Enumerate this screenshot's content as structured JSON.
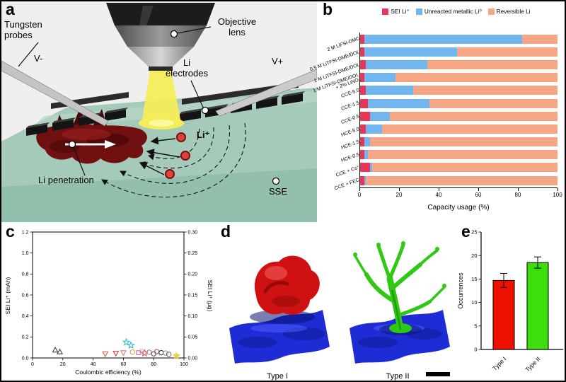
{
  "figure": {
    "panel_labels": {
      "a": "a",
      "b": "b",
      "c": "c",
      "d": "d",
      "e": "e"
    }
  },
  "panel_a": {
    "labels": {
      "tungsten_probes": "Tungsten\nprobes",
      "objective_lens": "Objective\nlens",
      "li_electrodes": "Li\nelectrodes",
      "v_minus": "V-",
      "v_plus": "V+",
      "li_ion": "Li⁺",
      "li_penetration": "Li penetration",
      "sse": "SSE"
    }
  },
  "panel_d": {
    "type_i_label": "Type I",
    "type_ii_label": "Type II"
  },
  "chart_data": [
    {
      "id": "capacity_usage",
      "panel": "b",
      "type": "bar",
      "orientation": "horizontal",
      "stacked": true,
      "legend": [
        "SEI Li⁺",
        "Unreacted metallic Li⁰",
        "Reversible Li"
      ],
      "colors": [
        "#e83558",
        "#72b6f0",
        "#f4a685"
      ],
      "categories": [
        "2 M LiFSI-DMC",
        "0.5 M LiTFSI-DME/DOL",
        "1 M LiTFSI-DME/DOL",
        "1 M LiTFSI-DME/DOL\n+ 2% LiNO₃",
        "CCE-5.0",
        "CCE-1.5",
        "CCE-0.5",
        "HCE-5.0",
        "HCE-1.5",
        "HCE-0.5",
        "CCE + Cs⁺",
        "CCE + FEC"
      ],
      "series": [
        {
          "name": "SEI Li⁺",
          "values": [
            2,
            2,
            3,
            2,
            3,
            4,
            5,
            3,
            2,
            2,
            5,
            2
          ]
        },
        {
          "name": "Unreacted metallic Li⁰",
          "values": [
            80,
            47,
            31,
            16,
            24,
            31,
            10,
            8,
            3,
            2,
            1,
            1
          ]
        },
        {
          "name": "Reversible Li",
          "values": [
            18,
            51,
            66,
            82,
            73,
            65,
            85,
            89,
            95,
            96,
            94,
            97
          ]
        }
      ],
      "xlabel": "Capacity usage (%)",
      "xticks": [
        0,
        20,
        40,
        60,
        80,
        100
      ],
      "xlim": [
        0,
        100
      ]
    },
    {
      "id": "sei_vs_coulombic_efficiency",
      "panel": "c",
      "type": "scatter",
      "xlabel": "Coulombic efficiency (%)",
      "ylabel_left": "SEI Li⁺ (mAh)",
      "ylabel_right": "SEI Li⁺ (µg)",
      "xlim": [
        0,
        100
      ],
      "ylim_left": [
        0,
        1.2
      ],
      "ylim_right": [
        0,
        0.3
      ],
      "xticks": [
        0,
        20,
        40,
        60,
        80,
        100
      ],
      "yticks_left": [
        "0.0",
        "0.2",
        "0.4",
        "0.6",
        "0.8",
        "1.0",
        "1.2"
      ],
      "yticks_right": [
        "0.00",
        "0.05",
        "0.10",
        "0.15",
        "0.20",
        "0.25",
        "0.30"
      ],
      "points": [
        {
          "x": 15,
          "y": 0.075,
          "marker": "triangle-up",
          "color": "#444444",
          "filled": false
        },
        {
          "x": 18,
          "y": 0.058,
          "marker": "triangle-up",
          "color": "#444444",
          "filled": false
        },
        {
          "x": 48,
          "y": 0.04,
          "marker": "triangle-down",
          "color": "#e05555",
          "filled": false
        },
        {
          "x": 55,
          "y": 0.046,
          "marker": "triangle-down",
          "color": "#d43c3c",
          "filled": false
        },
        {
          "x": 60,
          "y": 0.05,
          "marker": "triangle-down",
          "color": "#e07b7b",
          "filled": false
        },
        {
          "x": 62,
          "y": 0.15,
          "marker": "star",
          "color": "#35b8d0",
          "filled": false
        },
        {
          "x": 65,
          "y": 0.12,
          "marker": "star",
          "color": "#35b8d0",
          "filled": false
        },
        {
          "x": 66,
          "y": 0.056,
          "marker": "circle",
          "color": "#e8a03c",
          "filled": false
        },
        {
          "x": 70,
          "y": 0.05,
          "marker": "square",
          "color": "#b06ad4",
          "filled": false
        },
        {
          "x": 72,
          "y": 0.062,
          "marker": "circle",
          "color": "#f0a8bc",
          "filled": false
        },
        {
          "x": 74,
          "y": 0.046,
          "marker": "star",
          "color": "#e05555",
          "filled": false
        },
        {
          "x": 77,
          "y": 0.055,
          "marker": "circle",
          "color": "#909090",
          "filled": false
        },
        {
          "x": 80,
          "y": 0.04,
          "marker": "circle",
          "color": "#555555",
          "filled": false
        },
        {
          "x": 82,
          "y": 0.06,
          "marker": "circle",
          "color": "#c05555",
          "filled": false
        },
        {
          "x": 85,
          "y": 0.05,
          "marker": "circle",
          "color": "#303030",
          "filled": false
        },
        {
          "x": 88,
          "y": 0.046,
          "marker": "circle",
          "color": "#a0a0a0",
          "filled": false
        },
        {
          "x": 90,
          "y": 0.035,
          "marker": "circle",
          "color": "#707070",
          "filled": false
        },
        {
          "x": 95,
          "y": 0.02,
          "marker": "star",
          "color": "#e8d23c",
          "filled": true
        }
      ]
    },
    {
      "id": "occurrences",
      "panel": "e",
      "type": "bar",
      "categories": [
        "Type I",
        "Type II"
      ],
      "values": [
        14.7,
        18.5
      ],
      "errors": [
        1.5,
        1.2
      ],
      "colors": [
        "#ee1100",
        "#3ddd0e"
      ],
      "ylabel": "Occurrences",
      "yticks": [
        0,
        5,
        10,
        15,
        20,
        25
      ],
      "ylim": [
        0,
        25
      ]
    }
  ]
}
